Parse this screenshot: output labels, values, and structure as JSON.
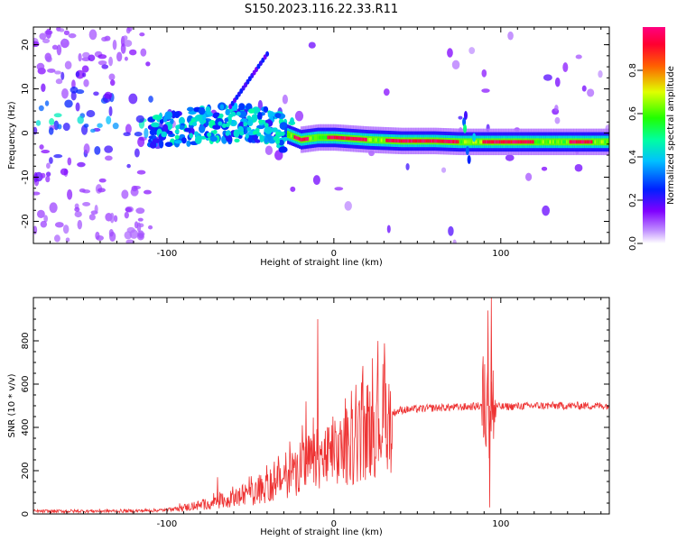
{
  "title": "S150.2023.116.22.33.R11",
  "chart_data": [
    {
      "type": "heatmap",
      "xlabel": "Height of straight line (km)",
      "ylabel": "Frequency (Hz)",
      "xlim": [
        -180,
        165
      ],
      "ylim": [
        -25,
        24
      ],
      "xticks": [
        -100,
        0,
        100
      ],
      "yticks": [
        -20,
        -10,
        0,
        10,
        20
      ],
      "colorbar": {
        "label": "Normalized spectral amplitude",
        "range": [
          0,
          1
        ],
        "ticks": [
          "0.0",
          "0.2",
          "0.4",
          "0.6",
          "0.8"
        ],
        "colormap": [
          "#ffffff",
          "#8000ff",
          "#0040ff",
          "#00ffff",
          "#00ff00",
          "#ffff00",
          "#ff0000",
          "#ff0080"
        ]
      },
      "ridge": {
        "x": [
          -110,
          -90,
          -70,
          -50,
          -30,
          -20,
          -10,
          0,
          20,
          40,
          60,
          75,
          80,
          85,
          90,
          110,
          130,
          150,
          165
        ],
        "y": [
          0,
          1.5,
          2,
          2.5,
          0,
          -1.5,
          -1,
          -1,
          -1.5,
          -1.8,
          -1.8,
          -2,
          -2,
          -2,
          -2,
          -2,
          -2,
          -2,
          -2
        ]
      },
      "peak_amplitude_range_km": [
        -25,
        165
      ]
    },
    {
      "type": "line",
      "xlabel": "Height of straight line (km)",
      "ylabel": "SNR (10 * v/v)",
      "xlim": [
        -180,
        165
      ],
      "ylim": [
        0,
        1000
      ],
      "xticks": [
        -100,
        0,
        100
      ],
      "yticks": [
        0,
        200,
        400,
        600,
        800
      ],
      "color": "#ee3333",
      "envelope": {
        "x": [
          -180,
          -120,
          -100,
          -80,
          -60,
          -40,
          -30,
          -20,
          -10,
          0,
          10,
          20,
          30,
          40,
          60,
          80,
          90,
          95,
          100,
          120,
          165
        ],
        "y": [
          12,
          14,
          18,
          40,
          70,
          120,
          170,
          220,
          250,
          270,
          310,
          390,
          450,
          480,
          490,
          495,
          500,
          500,
          495,
          500,
          500
        ]
      },
      "spikes": [
        {
          "x": -10,
          "y": 900
        },
        {
          "x": -17,
          "y": 520
        },
        {
          "x": 92,
          "y": 940
        },
        {
          "x": 94,
          "y": 1000
        },
        {
          "x": 93,
          "y": 30
        },
        {
          "x": -70,
          "y": 170
        }
      ]
    }
  ]
}
